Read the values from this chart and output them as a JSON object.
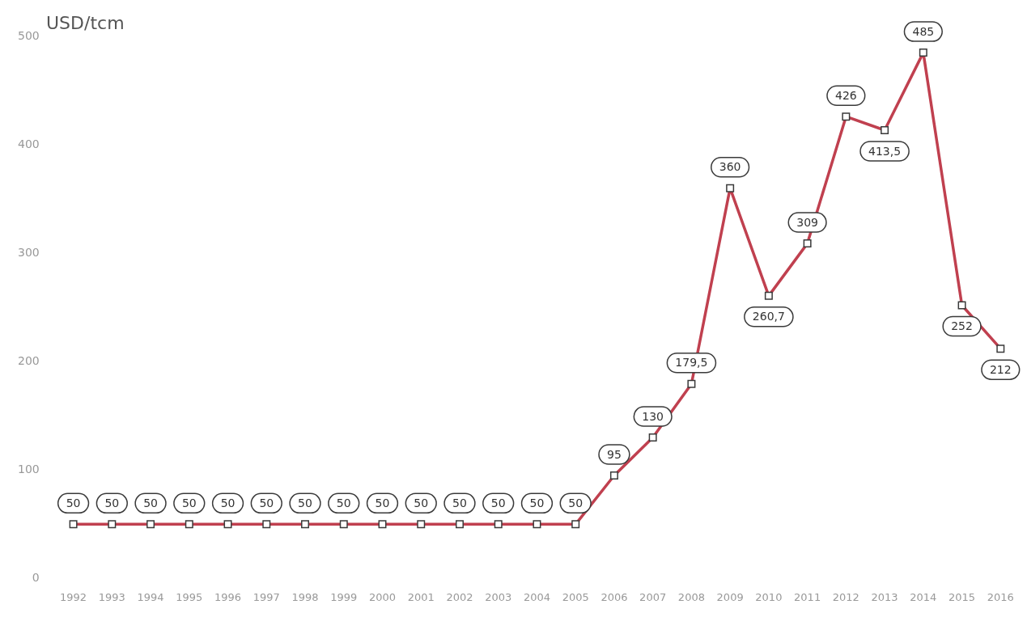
{
  "chart_data": {
    "type": "line",
    "ylabel": "USD/tcm",
    "categories": [
      "1992",
      "1993",
      "1994",
      "1995",
      "1996",
      "1997",
      "1998",
      "1999",
      "2000",
      "2001",
      "2002",
      "2003",
      "2004",
      "2005",
      "2006",
      "2007",
      "2008",
      "2009",
      "2010",
      "2011",
      "2012",
      "2013",
      "2014",
      "2015",
      "2016"
    ],
    "series": [
      {
        "color": "#c0404f",
        "values": [
          50,
          50,
          50,
          50,
          50,
          50,
          50,
          50,
          50,
          50,
          50,
          50,
          50,
          50,
          95,
          130,
          179.5,
          360,
          260.7,
          309,
          426,
          413.5,
          485,
          252,
          212
        ],
        "value_labels": [
          "50",
          "50",
          "50",
          "50",
          "50",
          "50",
          "50",
          "50",
          "50",
          "50",
          "50",
          "50",
          "50",
          "50",
          "95",
          "130",
          "179,5",
          "360",
          "260,7",
          "309",
          "426",
          "413,5",
          "485",
          "252",
          "212"
        ]
      }
    ],
    "ylim": [
      0,
      500
    ],
    "yticks": [
      0,
      100,
      200,
      300,
      400,
      500
    ],
    "grid": false,
    "legend": false,
    "marker": "square",
    "line_style": "solid"
  }
}
